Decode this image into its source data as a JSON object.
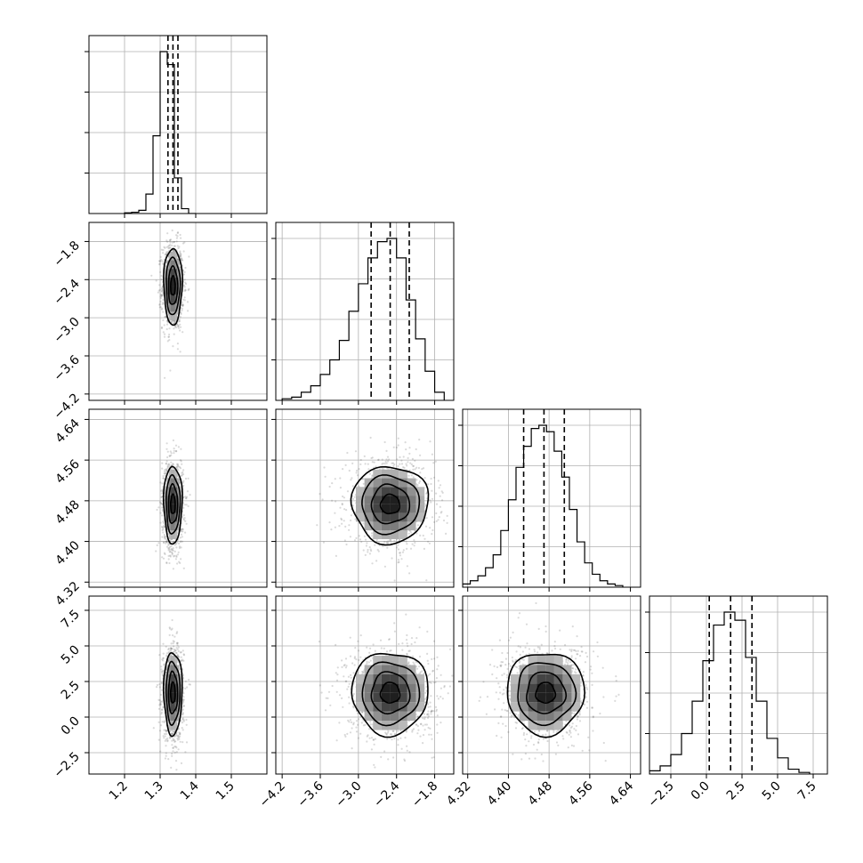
{
  "chart_data": {
    "type": "corner",
    "title": "",
    "grid": true,
    "colors": {
      "line": "#000000",
      "points": "#555555",
      "grid": "#b0b0b0",
      "background": "#ffffff"
    },
    "parameters": [
      {
        "range": [
          1.1,
          1.6
        ],
        "ticks": [
          1.2,
          1.3,
          1.4,
          1.5
        ],
        "tick_labels": [
          "1.2",
          "1.3",
          "1.4",
          "1.5"
        ],
        "mean": 1.336,
        "sd": 0.013,
        "quantiles": [
          1.322,
          1.336,
          1.35
        ],
        "hist_bins": [
          1.2,
          1.22,
          1.24,
          1.26,
          1.28,
          1.3,
          1.32,
          1.34,
          1.36,
          1.38,
          1.4
        ],
        "hist_counts": [
          0.004,
          0.008,
          0.02,
          0.12,
          0.48,
          1.0,
          0.92,
          0.22,
          0.03,
          0.0
        ]
      },
      {
        "range": [
          -4.3,
          -1.5
        ],
        "ticks": [
          -4.2,
          -3.6,
          -3.0,
          -2.4,
          -1.8
        ],
        "tick_labels": [
          "−4.2",
          "−3.6",
          "−3.0",
          "−2.4",
          "−1.8"
        ],
        "mean": -2.5,
        "sd": 0.3,
        "quantiles": [
          -2.8,
          -2.5,
          -2.2
        ],
        "hist_bins": [
          -4.2,
          -4.05,
          -3.9,
          -3.75,
          -3.6,
          -3.45,
          -3.3,
          -3.15,
          -3.0,
          -2.85,
          -2.7,
          -2.55,
          -2.4,
          -2.25,
          -2.1,
          -1.95,
          -1.8,
          -1.65
        ],
        "hist_counts": [
          0.01,
          0.02,
          0.05,
          0.09,
          0.16,
          0.25,
          0.37,
          0.55,
          0.72,
          0.88,
          0.98,
          1.0,
          0.88,
          0.62,
          0.38,
          0.18,
          0.05
        ]
      },
      {
        "range": [
          4.31,
          4.66
        ],
        "ticks": [
          4.32,
          4.4,
          4.48,
          4.56,
          4.64
        ],
        "tick_labels": [
          "4.32",
          "4.40",
          "4.48",
          "4.56",
          "4.64"
        ],
        "mean": 4.473,
        "sd": 0.038,
        "quantiles": [
          4.43,
          4.47,
          4.51
        ],
        "hist_bins": [
          4.31,
          4.325,
          4.34,
          4.355,
          4.37,
          4.385,
          4.4,
          4.415,
          4.43,
          4.445,
          4.46,
          4.475,
          4.49,
          4.505,
          4.52,
          4.535,
          4.55,
          4.565,
          4.58,
          4.595,
          4.61,
          4.625
        ],
        "hist_counts": [
          0.02,
          0.04,
          0.07,
          0.12,
          0.2,
          0.35,
          0.54,
          0.74,
          0.87,
          0.98,
          1.0,
          0.96,
          0.84,
          0.68,
          0.48,
          0.28,
          0.15,
          0.08,
          0.04,
          0.02,
          0.01
        ]
      },
      {
        "range": [
          -4.0,
          8.5
        ],
        "ticks": [
          -2.5,
          0.0,
          2.5,
          5.0,
          7.5
        ],
        "tick_labels": [
          "−2.5",
          "0.0",
          "2.5",
          "5.0",
          "7.5"
        ],
        "mean": 1.7,
        "sd": 1.45,
        "quantiles": [
          0.2,
          1.7,
          3.2
        ],
        "hist_bins": [
          -4.0,
          -3.25,
          -2.5,
          -1.75,
          -1.0,
          -0.25,
          0.5,
          1.25,
          2.0,
          2.75,
          3.5,
          4.25,
          5.0,
          5.75,
          6.5,
          7.25
        ],
        "hist_counts": [
          0.02,
          0.05,
          0.12,
          0.25,
          0.45,
          0.7,
          0.92,
          1.0,
          0.95,
          0.72,
          0.45,
          0.22,
          0.1,
          0.03,
          0.01
        ]
      }
    ]
  }
}
